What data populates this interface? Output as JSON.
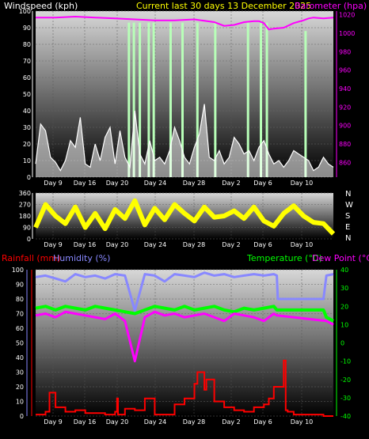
{
  "header": {
    "wind_label": "Windspeed (kph)",
    "title": "Current last 30 days 13 December 2025",
    "baro_label": "Barometer (hpa)"
  },
  "bottom_header": {
    "rain_label": "Rainfall (mm)",
    "humidity_label": "Humidity (%)",
    "temp_label": "Temperature (°C)",
    "dew_label": "Dew Point (°C)"
  },
  "colors": {
    "wind": "#ffffff",
    "gust": "#b8ffb8",
    "barometer": "#ff00ff",
    "direction": "#ffff00",
    "rain": "#ff0000",
    "humidity": "#8888ff",
    "temperature": "#00ff00",
    "dewpoint": "#ff00ff"
  },
  "chart_data": [
    {
      "type": "area",
      "name": "wind-barometer",
      "x_tick_labels": [
        "Day 9",
        "Day 16",
        "Day 20",
        "Day 24",
        "Day 28",
        "Day 2",
        "Day 6",
        "Day 10"
      ],
      "y_left": {
        "label": "Windspeed (kph)",
        "ticks": [
          0,
          10,
          20,
          30,
          40,
          50,
          60,
          70,
          80,
          90,
          100
        ],
        "range": [
          0,
          100
        ]
      },
      "y_right": {
        "label": "Barometer (hpa)",
        "ticks": [
          860,
          880,
          900,
          920,
          940,
          960,
          980,
          1000,
          1020
        ],
        "range": [
          844,
          1024
        ]
      },
      "x_range": [
        6,
        36
      ],
      "x_tick_positions": [
        9,
        13,
        17,
        21,
        25,
        29,
        33,
        34.8
      ],
      "series": [
        {
          "name": "Windspeed (kph)",
          "x": [
            6,
            6.5,
            7,
            7.5,
            8,
            8.5,
            9,
            9.5,
            10,
            10.5,
            11,
            11.5,
            12,
            12.5,
            13,
            13.5,
            14,
            14.5,
            15,
            15.5,
            16,
            16.5,
            17,
            17.5,
            18,
            18.5,
            19,
            19.5,
            20,
            20.5,
            21,
            21.5,
            22,
            22.5,
            23,
            23.5,
            24,
            24.5,
            25,
            25.5,
            26,
            26.5,
            27,
            27.5,
            28,
            28.5,
            29,
            29.5,
            30,
            30.5,
            31,
            31.5,
            32,
            32.5,
            33,
            33.5,
            34,
            34.5,
            35,
            35.5,
            36
          ],
          "values": [
            8,
            32,
            28,
            12,
            9,
            4,
            10,
            22,
            18,
            36,
            8,
            6,
            20,
            10,
            24,
            30,
            8,
            28,
            12,
            6,
            40,
            14,
            8,
            22,
            10,
            12,
            8,
            16,
            30,
            22,
            12,
            8,
            18,
            26,
            44,
            12,
            10,
            16,
            8,
            12,
            24,
            20,
            14,
            16,
            10,
            18,
            22,
            14,
            8,
            10,
            6,
            10,
            16,
            14,
            12,
            10,
            4,
            6,
            12,
            8,
            6
          ]
        },
        {
          "name": "Gust (kph)",
          "x": [
            15.4,
            15.9,
            16.5,
            17.4,
            17.9,
            19.6,
            20.8,
            22.3,
            24.1,
            27.4,
            28.7,
            29.3,
            33.2
          ],
          "values": [
            93,
            93,
            93,
            93,
            93,
            93,
            93,
            93,
            93,
            93,
            93,
            93,
            88
          ]
        },
        {
          "name": "Barometer (hpa)",
          "x": [
            6,
            8,
            10,
            12,
            14,
            16,
            18,
            20,
            22,
            24,
            25,
            26,
            27,
            28,
            28.5,
            29,
            29.5,
            30,
            31,
            32,
            33,
            33.5,
            34,
            35,
            36
          ],
          "values": [
            1017,
            1017,
            1018,
            1017,
            1016,
            1015,
            1014,
            1014,
            1015,
            1012,
            1008,
            1009,
            1012,
            1013,
            1013,
            1011,
            1004,
            1005,
            1006,
            1011,
            1014,
            1016,
            1017,
            1016,
            1017
          ]
        }
      ]
    },
    {
      "type": "line",
      "name": "wind-direction",
      "x_tick_labels": [
        "Day 9",
        "Day 16",
        "Day 20",
        "Day 24",
        "Day 28",
        "Day 2",
        "Day 6",
        "Day 10"
      ],
      "y_left": {
        "ticks": [
          0,
          90,
          180,
          270,
          360
        ],
        "range": [
          0,
          360
        ]
      },
      "y_right": {
        "ticks": [
          "N",
          "W",
          "S",
          "E",
          "N"
        ]
      },
      "x_range": [
        6,
        36
      ],
      "series": [
        {
          "name": "Wind direction",
          "x": [
            6,
            7,
            8,
            9,
            10,
            11,
            12,
            13,
            14,
            15,
            16,
            17,
            18,
            19,
            20,
            21,
            22,
            23,
            24,
            25,
            26,
            27,
            28,
            29,
            30,
            31,
            32,
            33,
            34,
            35,
            36
          ],
          "values": [
            90,
            270,
            180,
            120,
            250,
            90,
            200,
            80,
            230,
            160,
            300,
            110,
            240,
            150,
            270,
            200,
            140,
            250,
            170,
            180,
            220,
            160,
            250,
            140,
            100,
            200,
            260,
            180,
            130,
            120,
            40
          ]
        }
      ]
    },
    {
      "type": "line",
      "name": "rain-humidity-temperature",
      "x_tick_labels": [
        "Day 9",
        "Day 16",
        "Day 20",
        "Day 24",
        "Day 28",
        "Day 2",
        "Day 6",
        "Day 10"
      ],
      "y_left": {
        "ticks": [
          0,
          10,
          20,
          30,
          40,
          50,
          60,
          70,
          80,
          90,
          100
        ],
        "range": [
          0,
          100
        ]
      },
      "y_right": {
        "ticks": [
          40,
          30,
          20,
          10,
          0,
          -10,
          -20,
          -30,
          -40
        ],
        "range": [
          -40,
          40
        ]
      },
      "x_range": [
        6,
        36
      ],
      "series": [
        {
          "name": "Humidity (%)",
          "x": [
            6,
            7,
            8,
            9,
            10,
            11,
            12,
            13,
            14,
            15,
            16,
            17,
            18,
            19,
            20,
            21,
            22,
            23,
            24,
            25,
            26,
            27,
            28,
            29,
            30,
            30.3,
            30.4,
            35,
            35.3,
            36
          ],
          "values": [
            95,
            96,
            94,
            92,
            97,
            95,
            96,
            94,
            97,
            96,
            72,
            97,
            96,
            92,
            97,
            96,
            95,
            98,
            96,
            97,
            95,
            96,
            97,
            96,
            97,
            96,
            80,
            80,
            96,
            97
          ]
        },
        {
          "name": "Temperature (°C)",
          "x": [
            6,
            7,
            8,
            9,
            10,
            11,
            12,
            13,
            14,
            15,
            16,
            17,
            18,
            19,
            20,
            21,
            22,
            23,
            24,
            25,
            26,
            27,
            28,
            29,
            30,
            30.3,
            30.4,
            35,
            35.3,
            36
          ],
          "values": [
            19,
            20,
            18,
            20,
            19,
            18,
            20,
            19,
            18,
            17,
            16,
            18,
            20,
            19,
            18,
            20,
            18,
            19,
            20,
            18,
            17,
            19,
            18,
            19,
            20,
            18,
            18,
            18,
            14,
            12
          ]
        },
        {
          "name": "Dew Point (°C)",
          "x": [
            6,
            7,
            8,
            9,
            10,
            11,
            12,
            13,
            14,
            15,
            16,
            17,
            18,
            19,
            20,
            21,
            22,
            23,
            24,
            25,
            26,
            27,
            28,
            29,
            30,
            30.3,
            35.3,
            36
          ],
          "values": [
            15,
            16,
            14,
            17,
            16,
            15,
            14,
            13,
            16,
            12,
            -10,
            14,
            17,
            15,
            16,
            14,
            15,
            16,
            14,
            12,
            16,
            15,
            14,
            12,
            16,
            15,
            12,
            10
          ]
        },
        {
          "name": "Rainfall (mm)",
          "x": [
            6,
            7,
            7.4,
            7.5,
            8,
            9,
            10,
            11,
            12,
            13,
            14,
            14.2,
            14.3,
            15,
            16,
            17,
            18,
            19,
            20,
            21,
            22,
            22.3,
            23,
            23.2,
            24,
            25,
            26,
            27,
            28,
            29,
            29.5,
            30,
            31,
            31.2,
            31.4,
            32,
            33,
            34,
            35,
            36
          ],
          "values": [
            1,
            3,
            16,
            16,
            6,
            3,
            4,
            2,
            2,
            1,
            3,
            12,
            1,
            5,
            4,
            12,
            1,
            1,
            8,
            12,
            22,
            30,
            18,
            25,
            10,
            6,
            4,
            3,
            6,
            8,
            12,
            20,
            38,
            4,
            3,
            1,
            1,
            1,
            0,
            0
          ]
        }
      ]
    }
  ]
}
